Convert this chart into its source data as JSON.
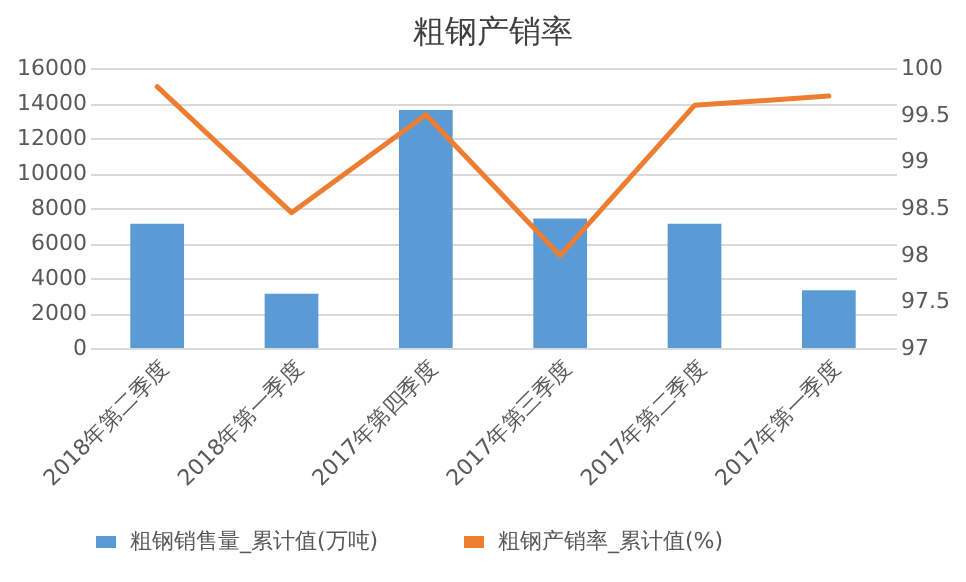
{
  "chart_data": {
    "type": "bar",
    "title": "粗钢产销率",
    "categories": [
      "2018年第二季度",
      "2018年第一季度",
      "2017年第四季度",
      "2017年第三季度",
      "2017年第二季度",
      "2017年第一季度"
    ],
    "series": [
      {
        "name": "粗钢销售量_累计值(万吨)",
        "color": "#5b9bd5",
        "values": [
          7100,
          3100,
          13600,
          7400,
          7100,
          3300
        ]
      },
      {
        "name": "粗钢产销率_累计值(%)",
        "type": "line",
        "color": "#ed7d31",
        "axis": "y2",
        "values": [
          99.8,
          98.45,
          99.5,
          97.99,
          99.6,
          99.7
        ]
      }
    ],
    "ylim": [
      0,
      16000
    ],
    "yticks": [
      0,
      2000,
      4000,
      6000,
      8000,
      10000,
      12000,
      14000,
      16000
    ],
    "y2lim": [
      97,
      100
    ],
    "y2ticks": [
      97,
      97.5,
      98,
      98.5,
      99,
      99.5,
      100
    ],
    "grid": "y",
    "legend": "bottom"
  }
}
